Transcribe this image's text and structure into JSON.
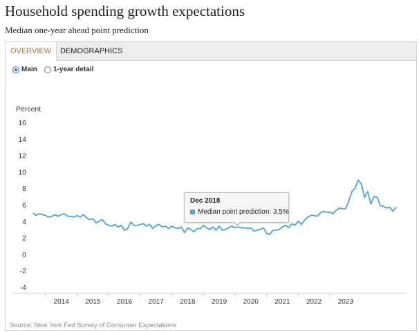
{
  "header": {
    "title": "Household spending growth expectations",
    "subtitle": "Median one-year ahead point prediction"
  },
  "tabs": [
    {
      "label": "OVERVIEW",
      "active": true
    },
    {
      "label": "DEMOGRAPHICS",
      "active": false
    }
  ],
  "radios": [
    {
      "label": "Main",
      "selected": true
    },
    {
      "label": "1-year detail",
      "selected": false
    }
  ],
  "tooltip": {
    "date": "Dec 2018",
    "series_label": "Median point prediction:",
    "value": "3.5%"
  },
  "source": "Source: New York Fed Survey of Consumer Expectations",
  "colors": {
    "line": "#4ea3d6",
    "accent": "#a0783c",
    "radio": "#1a73c8"
  },
  "chart_data": {
    "type": "line",
    "ylabel": "Percent",
    "ylim": [
      -4,
      16
    ],
    "yticks": [
      "16",
      "14",
      "12",
      "10",
      "8",
      "6",
      "4",
      "2",
      "0",
      "-2",
      "-4"
    ],
    "xticks": [
      "2014",
      "2015",
      "2016",
      "2017",
      "2018",
      "2019",
      "2020",
      "2021",
      "2022",
      "2023"
    ],
    "grid": false,
    "series": [
      {
        "values": [
          [
            2013.6,
            5.0
          ],
          [
            2013.7,
            4.7
          ],
          [
            2013.8,
            4.9
          ],
          [
            2013.9,
            4.8
          ],
          [
            2014.0,
            4.7
          ],
          [
            2014.1,
            4.5
          ],
          [
            2014.2,
            4.6
          ],
          [
            2014.3,
            4.8
          ],
          [
            2014.4,
            4.6
          ],
          [
            2014.5,
            4.8
          ],
          [
            2014.6,
            4.9
          ],
          [
            2014.7,
            4.6
          ],
          [
            2014.8,
            4.6
          ],
          [
            2014.9,
            4.5
          ],
          [
            2015.0,
            4.7
          ],
          [
            2015.1,
            4.5
          ],
          [
            2015.2,
            4.8
          ],
          [
            2015.3,
            4.4
          ],
          [
            2015.4,
            4.2
          ],
          [
            2015.5,
            4.3
          ],
          [
            2015.6,
            3.8
          ],
          [
            2015.7,
            4.0
          ],
          [
            2015.8,
            4.2
          ],
          [
            2015.9,
            3.7
          ],
          [
            2016.0,
            3.5
          ],
          [
            2016.1,
            3.4
          ],
          [
            2016.2,
            3.6
          ],
          [
            2016.3,
            3.3
          ],
          [
            2016.4,
            3.5
          ],
          [
            2016.5,
            2.9
          ],
          [
            2016.6,
            3.1
          ],
          [
            2016.7,
            3.9
          ],
          [
            2016.8,
            3.5
          ],
          [
            2016.9,
            3.5
          ],
          [
            2017.0,
            3.6
          ],
          [
            2017.1,
            3.7
          ],
          [
            2017.2,
            3.4
          ],
          [
            2017.3,
            3.6
          ],
          [
            2017.4,
            3.1
          ],
          [
            2017.5,
            3.5
          ],
          [
            2017.6,
            3.6
          ],
          [
            2017.7,
            3.3
          ],
          [
            2017.8,
            3.4
          ],
          [
            2017.9,
            3.1
          ],
          [
            2018.0,
            3.4
          ],
          [
            2018.1,
            3.2
          ],
          [
            2018.2,
            3.1
          ],
          [
            2018.3,
            3.3
          ],
          [
            2018.4,
            2.6
          ],
          [
            2018.5,
            3.2
          ],
          [
            2018.6,
            3.0
          ],
          [
            2018.7,
            2.7
          ],
          [
            2018.8,
            3.1
          ],
          [
            2018.9,
            3.1
          ],
          [
            2019.0,
            3.5
          ],
          [
            2019.1,
            3.2
          ],
          [
            2019.2,
            3.0
          ],
          [
            2019.3,
            3.3
          ],
          [
            2019.4,
            2.9
          ],
          [
            2019.5,
            3.4
          ],
          [
            2019.6,
            2.9
          ],
          [
            2019.7,
            3.0
          ],
          [
            2019.8,
            3.2
          ],
          [
            2019.9,
            3.4
          ],
          [
            2020.0,
            3.2
          ],
          [
            2020.1,
            3.3
          ],
          [
            2020.2,
            3.2
          ],
          [
            2020.3,
            3.2
          ],
          [
            2020.4,
            3.1
          ],
          [
            2020.5,
            3.2
          ],
          [
            2020.6,
            2.8
          ],
          [
            2020.7,
            2.9
          ],
          [
            2020.8,
            3.0
          ],
          [
            2020.9,
            3.2
          ],
          [
            2021.0,
            2.5
          ],
          [
            2021.1,
            2.4
          ],
          [
            2021.2,
            2.9
          ],
          [
            2021.3,
            2.9
          ],
          [
            2021.4,
            3.0
          ],
          [
            2021.5,
            3.3
          ],
          [
            2021.6,
            3.5
          ],
          [
            2021.7,
            3.2
          ],
          [
            2021.8,
            3.7
          ],
          [
            2021.9,
            3.5
          ],
          [
            2022.0,
            4.0
          ],
          [
            2022.1,
            3.6
          ],
          [
            2022.2,
            4.1
          ],
          [
            2022.3,
            4.5
          ],
          [
            2022.4,
            4.7
          ],
          [
            2022.5,
            4.7
          ],
          [
            2022.6,
            4.6
          ],
          [
            2022.7,
            5.0
          ],
          [
            2022.8,
            5.2
          ],
          [
            2022.9,
            5.1
          ],
          [
            2023.0,
            5.1
          ],
          [
            2023.1,
            4.9
          ],
          [
            2023.2,
            5.3
          ],
          [
            2023.3,
            5.6
          ],
          [
            2023.4,
            5.5
          ],
          [
            2023.5,
            5.5
          ],
          [
            2023.6,
            6.4
          ],
          [
            2023.7,
            7.6
          ],
          [
            2023.8,
            8.0
          ],
          [
            2023.9,
            9.0
          ],
          [
            2024.0,
            8.5
          ],
          [
            2024.1,
            6.9
          ],
          [
            2024.2,
            7.6
          ],
          [
            2024.3,
            6.1
          ],
          [
            2024.4,
            7.0
          ],
          [
            2024.5,
            6.9
          ],
          [
            2024.6,
            5.9
          ],
          [
            2024.7,
            5.8
          ],
          [
            2024.8,
            5.6
          ],
          [
            2024.9,
            5.7
          ],
          [
            2025.0,
            5.2
          ],
          [
            2025.1,
            5.7
          ]
        ]
      }
    ]
  }
}
